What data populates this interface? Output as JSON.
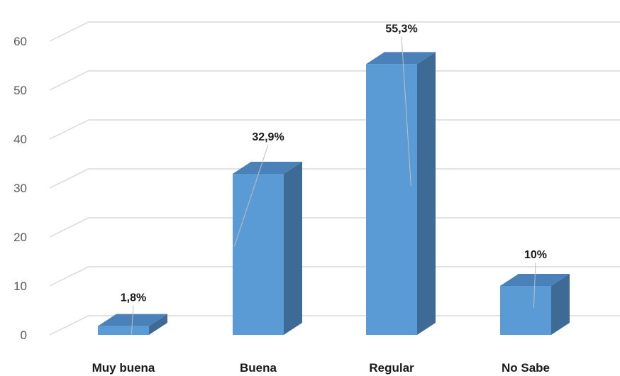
{
  "chart_data": {
    "type": "bar",
    "style": "3d-column",
    "categories": [
      "Muy buena",
      "Buena",
      "Regular",
      "No Sabe"
    ],
    "values": [
      1.8,
      32.9,
      55.3,
      10
    ],
    "data_labels": [
      "1,8%",
      "32,9%",
      "55,3%",
      "10%"
    ],
    "yticks": [
      "0",
      "10",
      "20",
      "30",
      "40",
      "50",
      "60"
    ],
    "ylim": [
      0,
      60
    ],
    "grid": true,
    "legend": "none",
    "colors": {
      "front": "#5b9bd5",
      "top": "#4a81b8",
      "side": "#3e6a96",
      "grid": "#d9d9d9"
    }
  }
}
